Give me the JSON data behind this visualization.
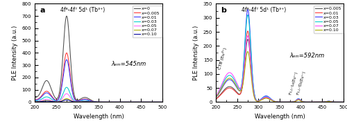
{
  "panel_a": {
    "title": "a",
    "annotation": "4f⁸-4f⁷ 5d¹ (Tb³⁺)",
    "lambda_label": "λₑₘ=545nm",
    "xlabel": "Wavelength (nm)",
    "ylabel": "PLE Intensity (a.u.)",
    "xlim": [
      200,
      500
    ],
    "ylim": [
      0,
      800
    ],
    "yticks": [
      0,
      100,
      200,
      300,
      400,
      500,
      600,
      700,
      800
    ],
    "series": [
      {
        "label": "x=0",
        "color": "#4d4d4d",
        "p1_amp": 175,
        "p2_amp": 700,
        "p3_amp": 38
      },
      {
        "label": "x=0.005",
        "color": "#ff3333",
        "p1_amp": 88,
        "p2_amp": 400,
        "p3_amp": 25
      },
      {
        "label": "x=0.01",
        "color": "#3333ff",
        "p1_amp": 75,
        "p2_amp": 345,
        "p3_amp": 22
      },
      {
        "label": "x=0.03",
        "color": "#00cccc",
        "p1_amp": 42,
        "p2_amp": 120,
        "p3_amp": 12
      },
      {
        "label": "x=0.05",
        "color": "#ff66ff",
        "p1_amp": 22,
        "p2_amp": 68,
        "p3_amp": 7
      },
      {
        "label": "x=0.07",
        "color": "#aaaa00",
        "p1_amp": 12,
        "p2_amp": 28,
        "p3_amp": 4
      },
      {
        "label": "x=0.10",
        "color": "#000099",
        "p1_amp": 8,
        "p2_amp": 18,
        "p3_amp": 3
      }
    ]
  },
  "panel_b": {
    "title": "b",
    "annotation": "4f⁸-4f⁷ 5d¹ (Tb³⁺)",
    "lambda_label": "λₑₘ=592nm",
    "ctb_label": "CTB (Eu³⁺)",
    "f0j_label": "⁷F₀,₁-⁷L₆(Eu³⁺)",
    "f0j2_label": "⁷F₀,₁-⁵D₂(Eu³⁺)",
    "xlabel": "Wavelength (nm)",
    "ylabel": "PLE Intensity (a.u.)",
    "xlim": [
      200,
      500
    ],
    "ylim": [
      0,
      350
    ],
    "yticks": [
      0,
      50,
      100,
      150,
      200,
      250,
      300,
      350
    ],
    "series": [
      {
        "label": "x=0.005",
        "color": "#4d4d4d",
        "ctb_amp": 55,
        "p1_amp": 220,
        "p2_amp": 15,
        "p3_amp": 8
      },
      {
        "label": "x=0.01",
        "color": "#ff3333",
        "ctb_amp": 50,
        "p1_amp": 250,
        "p2_amp": 16,
        "p3_amp": 9
      },
      {
        "label": "x=0.03",
        "color": "#3333ff",
        "ctb_amp": 80,
        "p1_amp": 325,
        "p2_amp": 22,
        "p3_amp": 12
      },
      {
        "label": "x=0.05",
        "color": "#00cccc",
        "ctb_amp": 95,
        "p1_amp": 305,
        "p2_amp": 20,
        "p3_amp": 11
      },
      {
        "label": "x=0.07",
        "color": "#ff44ff",
        "ctb_amp": 105,
        "p1_amp": 230,
        "p2_amp": 18,
        "p3_amp": 10
      },
      {
        "label": "x=0.10",
        "color": "#aaaa00",
        "ctb_amp": 85,
        "p1_amp": 175,
        "p2_amp": 14,
        "p3_amp": 8
      }
    ]
  }
}
